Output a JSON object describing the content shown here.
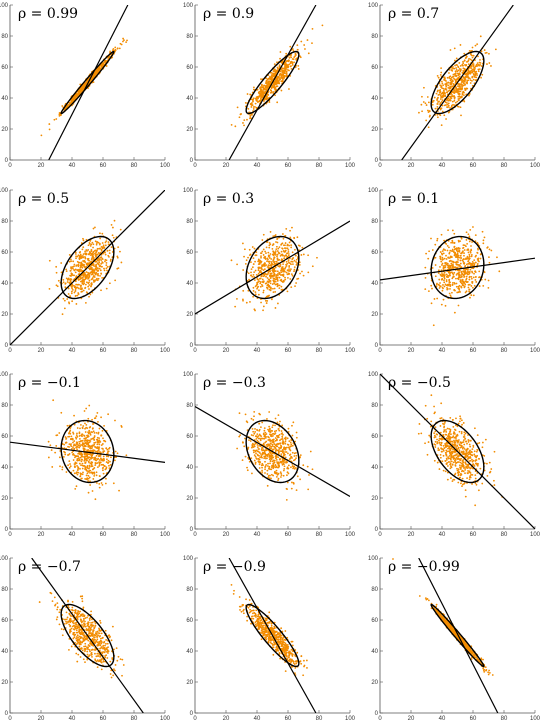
{
  "chart_data": [
    {
      "type": "scatter",
      "rho_label": "ρ = 0.99",
      "rho": 0.99,
      "xlim": [
        0,
        100
      ],
      "ylim": [
        0,
        100
      ],
      "xticks": [
        "0",
        "20",
        "40",
        "60",
        "80",
        "100"
      ],
      "yticks": [
        "0",
        "20",
        "40",
        "60",
        "80",
        "100"
      ],
      "mean": [
        50,
        50
      ],
      "sd": [
        10,
        10
      ],
      "line": {
        "x": [
          25,
          76
        ],
        "y": [
          0,
          100
        ]
      },
      "ellipse": true
    },
    {
      "type": "scatter",
      "rho_label": "ρ = 0.9",
      "rho": 0.9,
      "xlim": [
        0,
        100
      ],
      "ylim": [
        0,
        100
      ],
      "xticks": [
        "0",
        "20",
        "40",
        "60",
        "80",
        "100"
      ],
      "yticks": [
        "0",
        "20",
        "40",
        "60",
        "80",
        "100"
      ],
      "mean": [
        50,
        50
      ],
      "sd": [
        10,
        10
      ],
      "line": {
        "x": [
          22,
          78
        ],
        "y": [
          0,
          100
        ]
      },
      "ellipse": true
    },
    {
      "type": "scatter",
      "rho_label": "ρ = 0.7",
      "rho": 0.7,
      "xlim": [
        0,
        100
      ],
      "ylim": [
        0,
        100
      ],
      "xticks": [
        "0",
        "20",
        "40",
        "60",
        "80",
        "100"
      ],
      "yticks": [
        "0",
        "20",
        "40",
        "60",
        "80",
        "100"
      ],
      "mean": [
        50,
        50
      ],
      "sd": [
        10,
        10
      ],
      "line": {
        "x": [
          14,
          86
        ],
        "y": [
          0,
          100
        ]
      },
      "ellipse": true
    },
    {
      "type": "scatter",
      "rho_label": "ρ = 0.5",
      "rho": 0.5,
      "xlim": [
        0,
        100
      ],
      "ylim": [
        0,
        100
      ],
      "xticks": [
        "0",
        "20",
        "40",
        "60",
        "80",
        "100"
      ],
      "yticks": [
        "0",
        "20",
        "40",
        "60",
        "80",
        "100"
      ],
      "mean": [
        50,
        50
      ],
      "sd": [
        10,
        10
      ],
      "line": {
        "x": [
          0,
          100
        ],
        "y": [
          0,
          100
        ]
      },
      "ellipse": true
    },
    {
      "type": "scatter",
      "rho_label": "ρ = 0.3",
      "rho": 0.3,
      "xlim": [
        0,
        100
      ],
      "ylim": [
        0,
        100
      ],
      "xticks": [
        "0",
        "20",
        "40",
        "60",
        "80",
        "100"
      ],
      "yticks": [
        "0",
        "20",
        "40",
        "60",
        "80",
        "100"
      ],
      "mean": [
        50,
        50
      ],
      "sd": [
        10,
        10
      ],
      "line": {
        "x": [
          0,
          100
        ],
        "y": [
          20,
          80
        ]
      },
      "ellipse": true
    },
    {
      "type": "scatter",
      "rho_label": "ρ = 0.1",
      "rho": 0.1,
      "xlim": [
        0,
        100
      ],
      "ylim": [
        0,
        100
      ],
      "xticks": [
        "0",
        "20",
        "40",
        "60",
        "80",
        "100"
      ],
      "yticks": [
        "0",
        "20",
        "40",
        "60",
        "80",
        "100"
      ],
      "mean": [
        50,
        50
      ],
      "sd": [
        10,
        10
      ],
      "line": {
        "x": [
          0,
          100
        ],
        "y": [
          42,
          56
        ]
      },
      "ellipse": true
    },
    {
      "type": "scatter",
      "rho_label": "ρ = −0.1",
      "rho": -0.1,
      "xlim": [
        0,
        100
      ],
      "ylim": [
        0,
        100
      ],
      "xticks": [
        "0",
        "20",
        "40",
        "60",
        "80",
        "100"
      ],
      "yticks": [
        "0",
        "20",
        "40",
        "60",
        "80",
        "100"
      ],
      "mean": [
        50,
        50
      ],
      "sd": [
        10,
        10
      ],
      "line": {
        "x": [
          0,
          100
        ],
        "y": [
          56,
          43
        ]
      },
      "ellipse": true
    },
    {
      "type": "scatter",
      "rho_label": "ρ = −0.3",
      "rho": -0.3,
      "xlim": [
        0,
        100
      ],
      "ylim": [
        0,
        100
      ],
      "xticks": [
        "0",
        "20",
        "40",
        "60",
        "80",
        "100"
      ],
      "yticks": [
        "0",
        "20",
        "40",
        "60",
        "80",
        "100"
      ],
      "mean": [
        50,
        50
      ],
      "sd": [
        10,
        10
      ],
      "line": {
        "x": [
          0,
          100
        ],
        "y": [
          79,
          21
        ]
      },
      "ellipse": true
    },
    {
      "type": "scatter",
      "rho_label": "ρ = −0.5",
      "rho": -0.5,
      "xlim": [
        0,
        100
      ],
      "ylim": [
        0,
        100
      ],
      "xticks": [
        "0",
        "20",
        "40",
        "60",
        "80",
        "100"
      ],
      "yticks": [
        "0",
        "20",
        "40",
        "60",
        "80",
        "100"
      ],
      "mean": [
        50,
        50
      ],
      "sd": [
        10,
        10
      ],
      "line": {
        "x": [
          0,
          100
        ],
        "y": [
          100,
          0
        ]
      },
      "ellipse": true
    },
    {
      "type": "scatter",
      "rho_label": "ρ = −0.7",
      "rho": -0.7,
      "xlim": [
        0,
        100
      ],
      "ylim": [
        0,
        100
      ],
      "xticks": [
        "0",
        "20",
        "40",
        "60",
        "80",
        "100"
      ],
      "yticks": [
        "0",
        "20",
        "40",
        "60",
        "80",
        "100"
      ],
      "mean": [
        50,
        50
      ],
      "sd": [
        10,
        10
      ],
      "line": {
        "x": [
          14,
          86
        ],
        "y": [
          100,
          0
        ]
      },
      "ellipse": true
    },
    {
      "type": "scatter",
      "rho_label": "ρ = −0.9",
      "rho": -0.9,
      "xlim": [
        0,
        100
      ],
      "ylim": [
        0,
        100
      ],
      "xticks": [
        "0",
        "20",
        "40",
        "60",
        "80",
        "100"
      ],
      "yticks": [
        "0",
        "20",
        "40",
        "60",
        "80",
        "100"
      ],
      "mean": [
        50,
        50
      ],
      "sd": [
        10,
        10
      ],
      "line": {
        "x": [
          22,
          78
        ],
        "y": [
          100,
          0
        ]
      },
      "ellipse": true
    },
    {
      "type": "scatter",
      "rho_label": "ρ = −0.99",
      "rho": -0.99,
      "xlim": [
        0,
        100
      ],
      "ylim": [
        0,
        100
      ],
      "xticks": [
        "0",
        "20",
        "40",
        "60",
        "80",
        "100"
      ],
      "yticks": [
        "0",
        "20",
        "40",
        "60",
        "80",
        "100"
      ],
      "mean": [
        50,
        50
      ],
      "sd": [
        10,
        10
      ],
      "line": {
        "x": [
          25,
          76
        ],
        "y": [
          100,
          0
        ]
      },
      "ellipse": true
    }
  ],
  "colors": {
    "points": "#f28c00",
    "line": "#000000",
    "ellipse": "#000000",
    "axis": "#555555"
  },
  "layout": {
    "columns": 3,
    "rows": 4
  }
}
